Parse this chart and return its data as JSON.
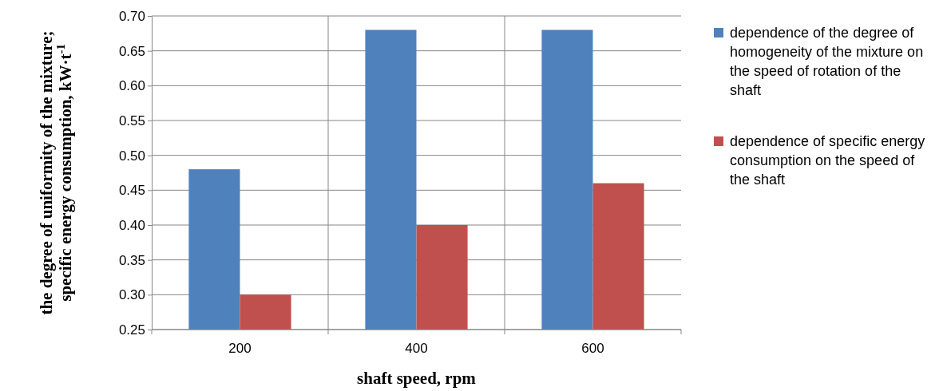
{
  "chart_data": {
    "type": "bar",
    "xlabel": "shaft speed, rpm",
    "ylabel": "the degree of uniformity of the mixture; specific energy consumption, kW·t$^{-1}$",
    "categories": [
      "200",
      "400",
      "600"
    ],
    "series": [
      {
        "name": "dependence of the degree of homogeneity of the mixture on the speed of rotation of the shaft",
        "color": "#4f81bd",
        "values": [
          0.48,
          0.68,
          0.68
        ]
      },
      {
        "name": "dependence of specific energy consumption on the speed of the shaft",
        "color": "#c0504d",
        "values": [
          0.3,
          0.4,
          0.46
        ]
      }
    ],
    "ylim": [
      0.25,
      0.7
    ],
    "yticks": [
      0.25,
      {
        "value": 0.3,
        "label": "0.30"
      },
      0.35,
      {
        "value": 0.4,
        "label": "0.40"
      },
      0.45,
      {
        "value": 0.5,
        "label": "0.50"
      },
      0.55,
      {
        "value": 0.6,
        "label": "0.60"
      },
      0.65,
      {
        "value": 0.7,
        "label": "0.70"
      }
    ],
    "grid": true,
    "legend": "right"
  }
}
